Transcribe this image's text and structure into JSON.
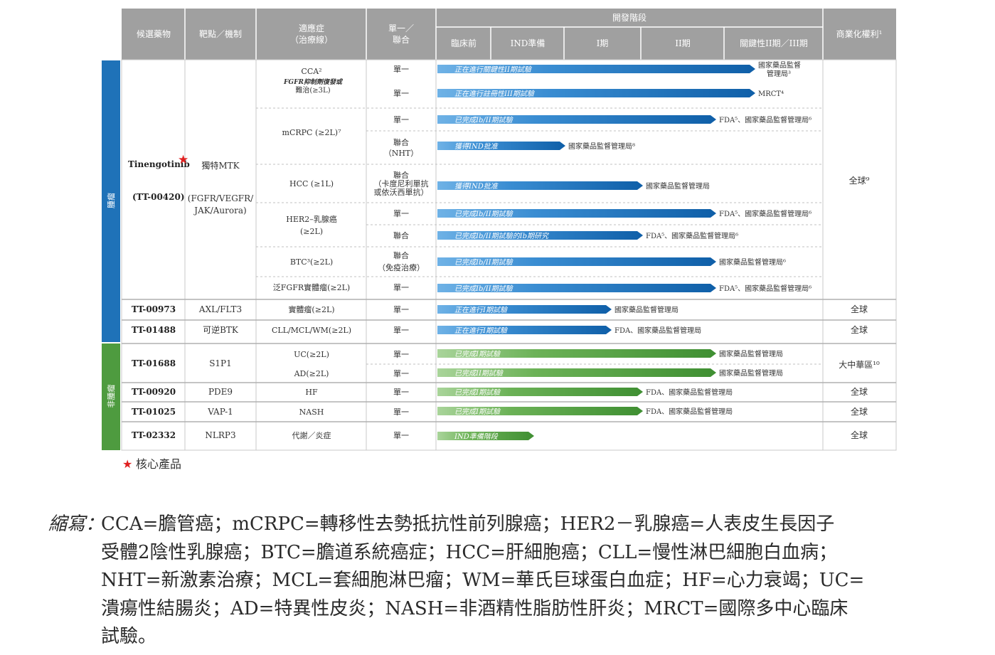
{
  "colors": {
    "oncology": "#1f72b8",
    "non_oncology": "#4e9b3f",
    "header_bg": "#a0a0a0",
    "header_text": "#ffffff",
    "core_star": "#e02020"
  },
  "header": {
    "candidate": "候選藥物",
    "target": "靶點／機制",
    "indication": "適應症",
    "indication_sub": "（治療線）",
    "mono_l1": "單一／",
    "mono_l2": "聯合",
    "stage": "開發階段",
    "commercial": "商業化權利¹",
    "phases": [
      "臨床前",
      "IND準備",
      "I期",
      "II期",
      "關鍵性II期／III期"
    ]
  },
  "groups": {
    "oncology": "腫瘤",
    "non_oncology": "非腫瘤"
  },
  "drugs": [
    {
      "name": "Tinengotinib",
      "code": "(TT-00420)",
      "target": "獨特MTK",
      "target_sub1": "(FGFR/VEGFR/",
      "target_sub2": "JAK/Aurora)",
      "rights": "全球⁹"
    },
    {
      "name": "TT-00973",
      "target": "AXL/FLT3",
      "rights": "全球"
    },
    {
      "name": "TT-01488",
      "target": "可逆BTK",
      "rights": "全球"
    },
    {
      "name": "TT-01688",
      "target": "S1P1",
      "rights": "大中華區¹⁰"
    },
    {
      "name": "TT-00920",
      "target": "PDE9",
      "rights": "全球"
    },
    {
      "name": "TT-01025",
      "target": "VAP-1",
      "rights": "全球"
    },
    {
      "name": "TT-02332",
      "target": "NLRP3",
      "rights": "全球"
    }
  ],
  "indications": {
    "cca": "CCA²",
    "cca_sub1": "FGFR抑制劑復發或",
    "cca_sub2": "難治(≥3L)",
    "mcrpc": "mCRPC (≥2L)⁷",
    "hcc": "HCC (≥1L)",
    "her2_l1": "HER2–乳腺癌",
    "her2_l2": "(≥2L)",
    "btc": "BTC³(≥2L)",
    "pan": "泛FGFR實體瘤(≥2L)",
    "solid": "實體瘤(≥2L)",
    "cll": "CLL/MCL/WM(≥2L)",
    "uc": "UC(≥2L)",
    "ad": "AD(≥2L)",
    "hf": "HF",
    "nash": "NASH",
    "metab": "代謝／炎症"
  },
  "combo": {
    "mono": "單一",
    "combo": "聯合",
    "nht": "（NHT）",
    "hcc_combo_l2": "（卡度尼利單抗",
    "hcc_combo_l3": "或依沃西單抗）",
    "immune": "（免疫治療）"
  },
  "rows": [
    {
      "bar": "正在進行關鍵性II期試驗",
      "note": "國家藥品監督",
      "note2": "管理局³",
      "value": 0.82
    },
    {
      "bar": "正在進行註冊性III期試驗",
      "note": "MRCT⁴",
      "value": 0.82
    },
    {
      "bar": "已完成Ib/II期試驗",
      "note": "FDA⁵、國家藥品監督管理局⁶",
      "value": 0.72
    },
    {
      "bar": "獲得IND批准",
      "note": "國家藥品監督管理局⁸",
      "value": 0.33
    },
    {
      "bar": "獲得IND批准",
      "note": "國家藥品監督管理局",
      "value": 0.53
    },
    {
      "bar": "已完成Ib/II期試驗",
      "note": "FDA⁵、國家藥品監督管理局⁶",
      "value": 0.72
    },
    {
      "bar": "已完成Ib/II期試驗的Ib期研究",
      "note": "FDA⁵、國家藥品監督管理局⁶",
      "value": 0.53
    },
    {
      "bar": "已完成Ib/II期試驗",
      "note": "國家藥品監督管理局⁶",
      "value": 0.72
    },
    {
      "bar": "已完成Ib/II期試驗",
      "note": "FDA⁵、國家藥品監督管理局⁶",
      "value": 0.72
    },
    {
      "bar": "正在進行I期試驗",
      "note": "國家藥品監督管理局",
      "value": 0.45
    },
    {
      "bar": "正在進行I期試驗",
      "note": "FDA、國家藥品監督管理局",
      "value": 0.45
    },
    {
      "bar": "已完成I期試驗",
      "note": "國家藥品監督管理局",
      "value": 0.72
    },
    {
      "bar": "已完成II期試驗",
      "note": "國家藥品監督管理局",
      "value": 0.72
    },
    {
      "bar": "已完成I期試驗",
      "note": "FDA、國家藥品監督管理局",
      "value": 0.53
    },
    {
      "bar": "已完成I期試驗",
      "note": "FDA、國家藥品監督管理局",
      "value": 0.53
    },
    {
      "bar": "IND準備階段",
      "note": "",
      "value": 0.25
    }
  ],
  "core_product": "核心產品",
  "star": "★",
  "abbreviations": {
    "title": "縮寫：",
    "line1": "CCA=膽管癌；mCRPC=轉移性去勢抵抗性前列腺癌；HER2－乳腺癌=人表皮生長因子",
    "line2": "受體2陰性乳腺癌；BTC=膽道系統癌症；HCC=肝細胞癌；CLL=慢性淋巴細胞白血病；",
    "line3": "NHT=新激素治療；MCL=套細胞淋巴瘤；WM=華氏巨球蛋白血症；HF=心力衰竭；UC=",
    "line4": "潰瘍性結腸炎；AD=特異性皮炎；NASH=非酒精性脂肪性肝炎；MRCT=國際多中心臨床",
    "line5": "試驗。"
  }
}
